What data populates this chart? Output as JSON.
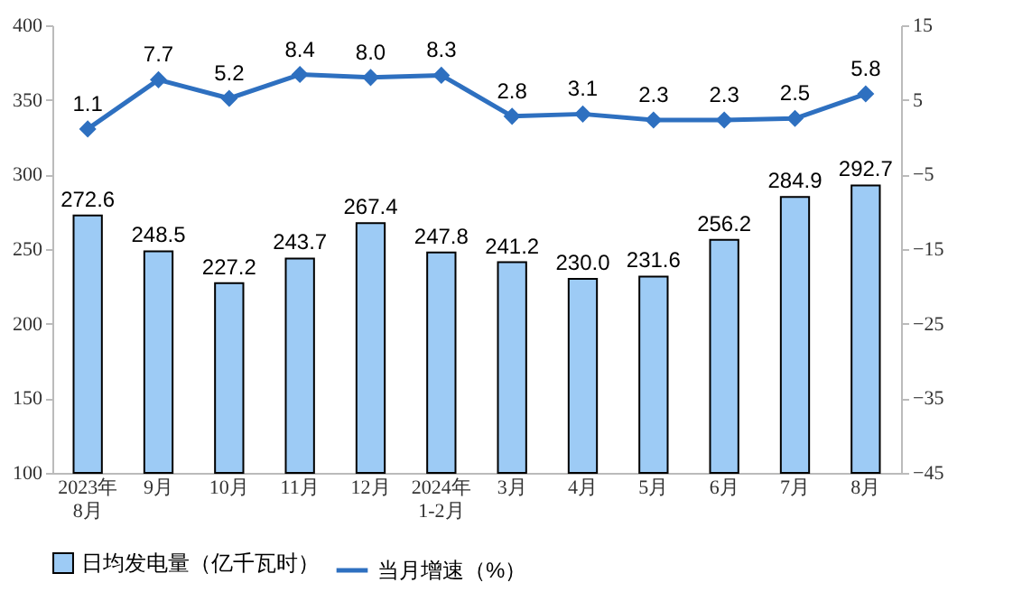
{
  "chart_data": {
    "type": "bar",
    "categories": [
      "2023年\n8月",
      "9月",
      "10月",
      "11月",
      "12月",
      "2024年\n1-2月",
      "3月",
      "4月",
      "5月",
      "6月",
      "7月",
      "8月"
    ],
    "series": [
      {
        "name": "日均发电量（亿千瓦时）",
        "color": "#9dcbf5",
        "values": [
          272.6,
          248.5,
          227.2,
          243.7,
          267.4,
          247.8,
          241.2,
          230.0,
          231.6,
          256.2,
          284.9,
          292.7
        ],
        "value_labels": [
          "272.6",
          "248.5",
          "227.2",
          "243.7",
          "267.4",
          "247.8",
          "241.2",
          "230.0",
          "231.6",
          "256.2",
          "284.9",
          "292.7"
        ]
      },
      {
        "name": "当月增速（%）",
        "type": "line",
        "axis": "y2",
        "color": "#2e70c0",
        "marker": "diamond",
        "values": [
          1.1,
          7.7,
          5.2,
          8.4,
          8.0,
          8.3,
          2.8,
          3.1,
          2.3,
          2.3,
          2.5,
          5.8
        ],
        "value_labels": [
          "1.1",
          "7.7",
          "5.2",
          "8.4",
          "8.0",
          "8.3",
          "2.8",
          "3.1",
          "2.3",
          "2.3",
          "2.5",
          "5.8"
        ]
      }
    ],
    "ylim": [
      100,
      400
    ],
    "yticks": [
      100,
      150,
      200,
      250,
      300,
      350,
      400
    ],
    "y2lim": [
      -45,
      15
    ],
    "y2ticks": [
      -45,
      -35,
      -25,
      -15,
      -5,
      5,
      15
    ],
    "legend": "bottom"
  }
}
